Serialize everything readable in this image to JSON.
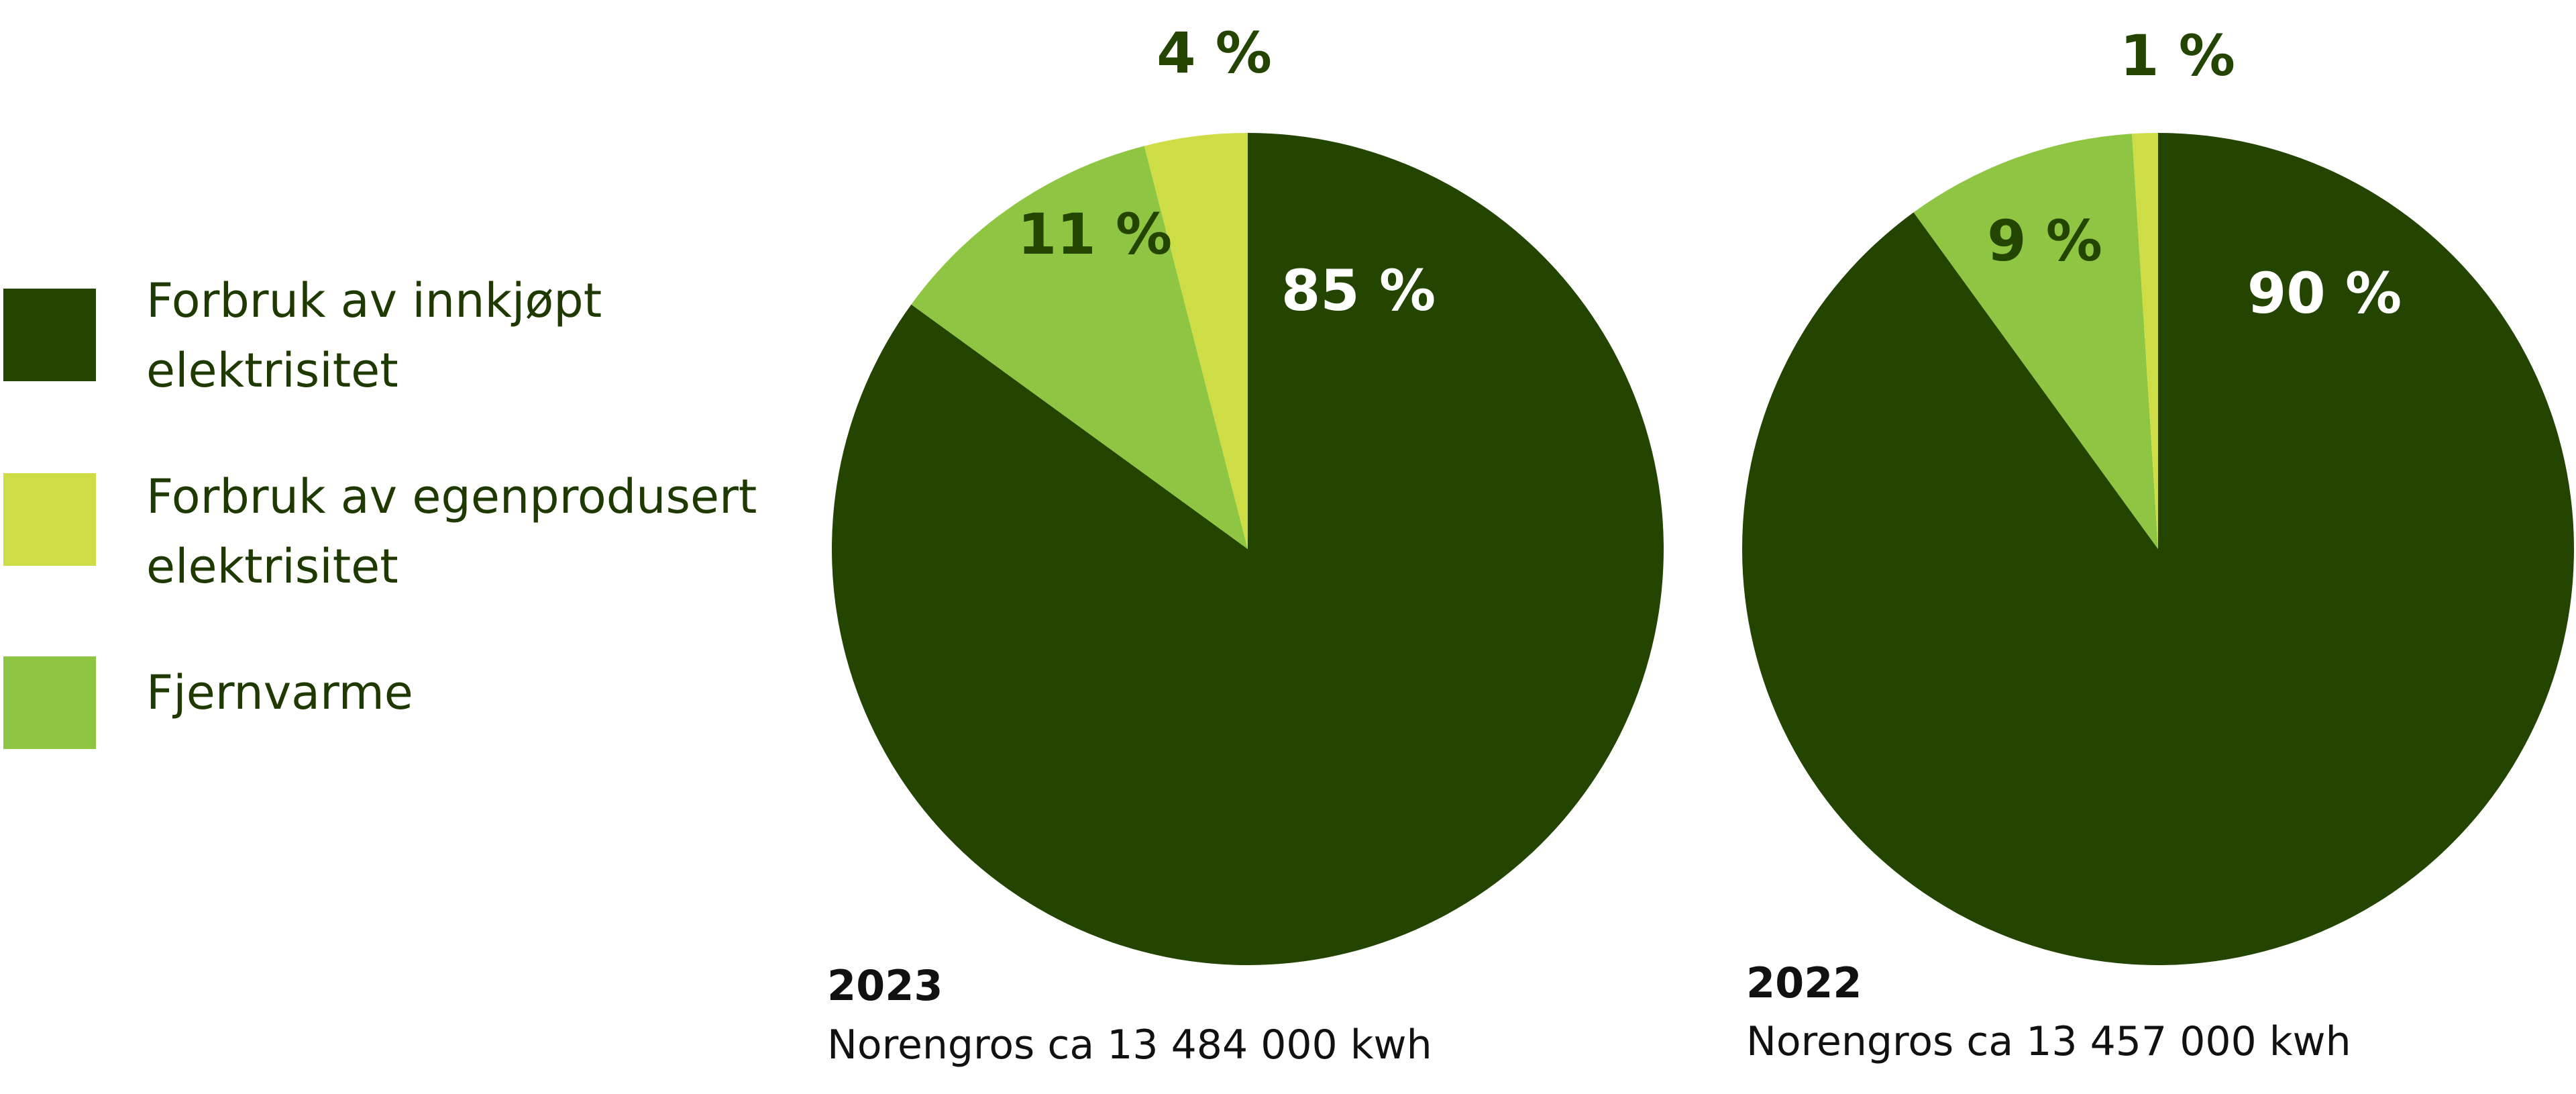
{
  "chart_data": [
    {
      "type": "pie",
      "year": "2023",
      "caption": "Norengros ca 13 484 000 kwh",
      "slices": [
        {
          "category": "Forbruk av innkjøpt elektrisitet",
          "value": 85,
          "label": "85 %"
        },
        {
          "category": "Fjernvarme",
          "value": 11,
          "label": "11 %"
        },
        {
          "category": "Forbruk av egenprodusert elektrisitet",
          "value": 4,
          "label": "4 %"
        }
      ]
    },
    {
      "type": "pie",
      "year": "2022",
      "caption": "Norengros ca 13 457 000 kwh",
      "slices": [
        {
          "category": "Forbruk av innkjøpt elektrisitet",
          "value": 90,
          "label": "90 %"
        },
        {
          "category": "Fjernvarme",
          "value": 9,
          "label": "9 %"
        },
        {
          "category": "Forbruk av egenprodusert elektrisitet",
          "value": 1,
          "label": "1 %"
        }
      ]
    }
  ],
  "legend": {
    "items": [
      {
        "lines": [
          "Forbruk av innkjøpt",
          "elektrisitet"
        ],
        "color": "#234500"
      },
      {
        "lines": [
          "Forbruk av egenprodusert",
          "elektrisitet"
        ],
        "color": "#cedd45"
      },
      {
        "lines": [
          "Fjernvarme"
        ],
        "color": "#8ec643"
      }
    ]
  },
  "colors": {
    "Forbruk av innkjøpt elektrisitet": "#234500",
    "Forbruk av egenprodusert elektrisitet": "#cedd45",
    "Fjernvarme": "#8ec643",
    "label_dark": "#234500",
    "label_light": "#ffffff"
  }
}
